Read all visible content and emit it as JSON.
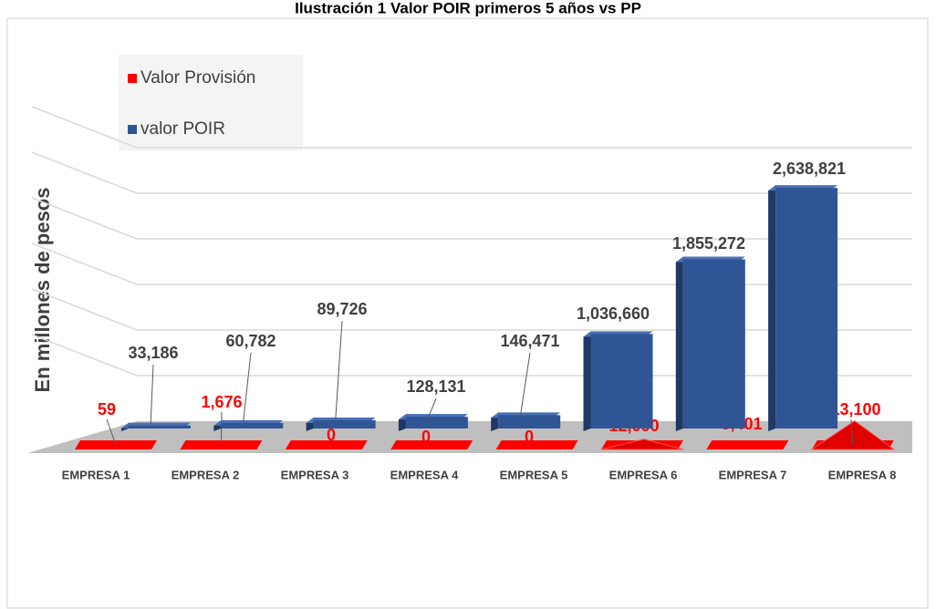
{
  "chart_data": {
    "type": "bar3d",
    "title": "Ilustración 1 Valor POIR primeros 5 años vs PP",
    "y_label": "En millones de pesos",
    "categories": [
      "EMPRESA 1",
      "EMPRESA 2",
      "EMPRESA 3",
      "EMPRESA 4",
      "EMPRESA 5",
      "EMPRESA 6",
      "EMPRESA 7",
      "EMPRESA 8"
    ],
    "series": [
      {
        "name": "Valor Provisión",
        "color": "#ff0000",
        "values": [
          59,
          1676,
          0,
          0,
          0,
          12000,
          3401,
          213100
        ],
        "value_labels": [
          "59",
          "1,676",
          "0",
          "0",
          "0",
          "12,000",
          "3,401",
          "213,100"
        ]
      },
      {
        "name": "valor POIR",
        "color": "#2f5597",
        "values": [
          33186,
          60782,
          89726,
          128131,
          146471,
          1036660,
          1855272,
          2638821
        ],
        "value_labels": [
          "33,186",
          "60,782",
          "89,726",
          "128,131",
          "146,471",
          "1,036,660",
          "1,855,272",
          "2,638,821"
        ]
      }
    ],
    "ylim": [
      0,
      3000000
    ],
    "yticks": [
      0,
      500000,
      1000000,
      1500000,
      2000000,
      2500000,
      3000000
    ],
    "grid": true,
    "legend": "top-left"
  }
}
